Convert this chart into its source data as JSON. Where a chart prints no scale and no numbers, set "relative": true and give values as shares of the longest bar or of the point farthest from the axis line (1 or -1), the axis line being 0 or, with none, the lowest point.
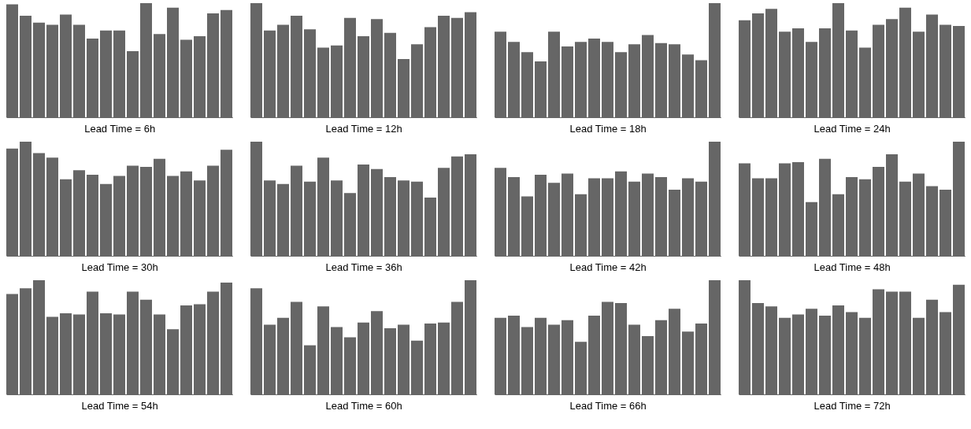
{
  "chart_data": [
    {
      "type": "bar",
      "xlabel": "Lead Time = 6h",
      "relative": true,
      "color": "#666666",
      "categories": [
        null,
        null,
        null,
        null,
        null,
        null,
        null,
        null,
        null,
        null,
        null,
        null,
        null,
        null,
        null,
        null,
        null
      ],
      "values": [
        0.99,
        0.89,
        0.83,
        0.81,
        0.9,
        0.81,
        0.69,
        0.76,
        0.76,
        0.58,
        1.0,
        0.73,
        0.96,
        0.68,
        0.71,
        0.91,
        0.94
      ]
    },
    {
      "type": "bar",
      "xlabel": "Lead Time = 12h",
      "relative": true,
      "color": "#666666",
      "categories": [
        null,
        null,
        null,
        null,
        null,
        null,
        null,
        null,
        null,
        null,
        null,
        null,
        null,
        null,
        null,
        null,
        null
      ],
      "values": [
        1.0,
        0.76,
        0.81,
        0.89,
        0.77,
        0.61,
        0.63,
        0.87,
        0.71,
        0.86,
        0.74,
        0.51,
        0.64,
        0.79,
        0.89,
        0.87,
        0.92
      ]
    },
    {
      "type": "bar",
      "xlabel": "Lead Time = 18h",
      "relative": true,
      "color": "#666666",
      "categories": [
        null,
        null,
        null,
        null,
        null,
        null,
        null,
        null,
        null,
        null,
        null,
        null,
        null,
        null,
        null,
        null,
        null
      ],
      "values": [
        0.75,
        0.66,
        0.57,
        0.49,
        0.75,
        0.62,
        0.66,
        0.69,
        0.66,
        0.57,
        0.64,
        0.72,
        0.65,
        0.64,
        0.55,
        0.5,
        1.0
      ]
    },
    {
      "type": "bar",
      "xlabel": "Lead Time = 24h",
      "relative": true,
      "color": "#666666",
      "categories": [
        null,
        null,
        null,
        null,
        null,
        null,
        null,
        null,
        null,
        null,
        null,
        null,
        null,
        null,
        null,
        null,
        null
      ],
      "values": [
        0.85,
        0.91,
        0.95,
        0.75,
        0.78,
        0.66,
        0.78,
        1.0,
        0.76,
        0.61,
        0.81,
        0.86,
        0.96,
        0.75,
        0.9,
        0.81,
        0.8
      ]
    },
    {
      "type": "bar",
      "xlabel": "Lead Time = 30h",
      "relative": true,
      "color": "#666666",
      "categories": [
        null,
        null,
        null,
        null,
        null,
        null,
        null,
        null,
        null,
        null,
        null,
        null,
        null,
        null,
        null,
        null,
        null
      ],
      "values": [
        0.94,
        1.0,
        0.9,
        0.86,
        0.67,
        0.75,
        0.71,
        0.63,
        0.7,
        0.79,
        0.78,
        0.85,
        0.7,
        0.74,
        0.66,
        0.79,
        0.93
      ]
    },
    {
      "type": "bar",
      "xlabel": "Lead Time = 36h",
      "relative": true,
      "color": "#666666",
      "categories": [
        null,
        null,
        null,
        null,
        null,
        null,
        null,
        null,
        null,
        null,
        null,
        null,
        null,
        null,
        null,
        null,
        null
      ],
      "values": [
        1.0,
        0.66,
        0.63,
        0.79,
        0.65,
        0.86,
        0.66,
        0.55,
        0.8,
        0.76,
        0.69,
        0.66,
        0.65,
        0.51,
        0.77,
        0.87,
        0.89
      ]
    },
    {
      "type": "bar",
      "xlabel": "Lead Time = 42h",
      "relative": true,
      "color": "#666666",
      "categories": [
        null,
        null,
        null,
        null,
        null,
        null,
        null,
        null,
        null,
        null,
        null,
        null,
        null,
        null,
        null,
        null,
        null
      ],
      "values": [
        0.77,
        0.69,
        0.52,
        0.71,
        0.64,
        0.72,
        0.54,
        0.68,
        0.68,
        0.74,
        0.65,
        0.72,
        0.69,
        0.58,
        0.68,
        0.65,
        1.0
      ]
    },
    {
      "type": "bar",
      "xlabel": "Lead Time = 48h",
      "relative": true,
      "color": "#666666",
      "categories": [
        null,
        null,
        null,
        null,
        null,
        null,
        null,
        null,
        null,
        null,
        null,
        null,
        null,
        null,
        null,
        null,
        null
      ],
      "values": [
        0.81,
        0.68,
        0.68,
        0.81,
        0.82,
        0.47,
        0.85,
        0.54,
        0.69,
        0.67,
        0.78,
        0.89,
        0.65,
        0.72,
        0.61,
        0.58,
        1.0
      ]
    },
    {
      "type": "bar",
      "xlabel": "Lead Time = 54h",
      "relative": true,
      "color": "#666666",
      "categories": [
        null,
        null,
        null,
        null,
        null,
        null,
        null,
        null,
        null,
        null,
        null,
        null,
        null,
        null,
        null,
        null,
        null
      ],
      "values": [
        0.88,
        0.93,
        1.0,
        0.68,
        0.71,
        0.7,
        0.9,
        0.71,
        0.7,
        0.9,
        0.83,
        0.7,
        0.57,
        0.78,
        0.79,
        0.9,
        0.98
      ]
    },
    {
      "type": "bar",
      "xlabel": "Lead Time = 60h",
      "relative": true,
      "color": "#666666",
      "categories": [
        null,
        null,
        null,
        null,
        null,
        null,
        null,
        null,
        null,
        null,
        null,
        null,
        null,
        null,
        null,
        null,
        null
      ],
      "values": [
        0.93,
        0.61,
        0.67,
        0.81,
        0.43,
        0.77,
        0.59,
        0.5,
        0.63,
        0.73,
        0.58,
        0.61,
        0.47,
        0.62,
        0.63,
        0.81,
        1.0
      ]
    },
    {
      "type": "bar",
      "xlabel": "Lead Time = 66h",
      "relative": true,
      "color": "#666666",
      "categories": [
        null,
        null,
        null,
        null,
        null,
        null,
        null,
        null,
        null,
        null,
        null,
        null,
        null,
        null,
        null,
        null,
        null
      ],
      "values": [
        0.67,
        0.69,
        0.59,
        0.67,
        0.61,
        0.65,
        0.46,
        0.69,
        0.81,
        0.8,
        0.61,
        0.51,
        0.65,
        0.75,
        0.55,
        0.62,
        1.0
      ]
    },
    {
      "type": "bar",
      "xlabel": "Lead Time = 72h",
      "relative": true,
      "color": "#666666",
      "categories": [
        null,
        null,
        null,
        null,
        null,
        null,
        null,
        null,
        null,
        null,
        null,
        null,
        null,
        null,
        null,
        null,
        null
      ],
      "values": [
        1.0,
        0.8,
        0.77,
        0.67,
        0.7,
        0.75,
        0.69,
        0.78,
        0.72,
        0.67,
        0.92,
        0.9,
        0.9,
        0.67,
        0.83,
        0.72,
        0.96
      ]
    }
  ]
}
